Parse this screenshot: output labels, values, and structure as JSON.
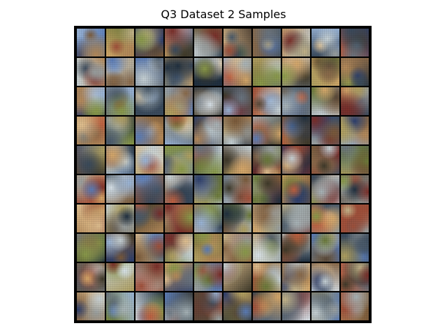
{
  "figure": {
    "title": "Q3 Dataset 2 Samples"
  },
  "samples": {
    "rows": 10,
    "cols": 10,
    "palette": [
      "#a8b4b8",
      "#c7d2d6",
      "#6a7580",
      "#3a4a5c",
      "#2d3f6e",
      "#5b7db8",
      "#9ab5d8",
      "#d9e3ea",
      "#8a6a4a",
      "#b58a5a",
      "#d6a86a",
      "#7a5a3a",
      "#5a4a3a",
      "#3f3a2a",
      "#6b7a3a",
      "#8a9a4a",
      "#b0a060",
      "#c4b48a",
      "#a0503a",
      "#7a2f2a",
      "#c06040",
      "#e0c090",
      "#4a5a6a",
      "#203040",
      "#9aa0a0"
    ]
  }
}
